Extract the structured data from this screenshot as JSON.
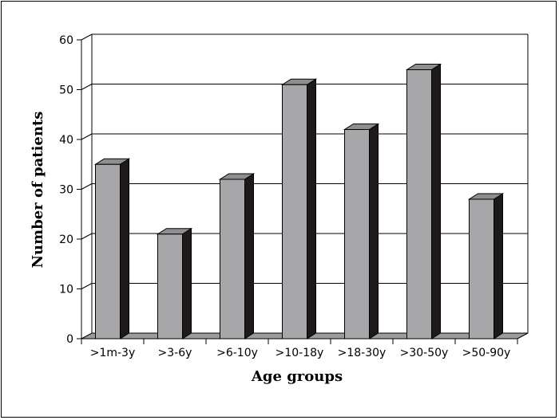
{
  "chart_data": {
    "type": "bar",
    "title": "",
    "xlabel": "Age groups",
    "ylabel": "Number of patients",
    "categories": [
      ">1m-3y",
      ">3-6y",
      ">6-10y",
      ">10-18y",
      ">18-30y",
      ">30-50y",
      ">50-90y"
    ],
    "values": [
      35,
      21,
      32,
      51,
      42,
      54,
      28
    ],
    "ylim": [
      0,
      60
    ],
    "yticks": [
      "0",
      "10",
      "20",
      "30",
      "40",
      "50",
      "60"
    ],
    "grid": true,
    "legend": "none",
    "colors": {
      "bar_front": "#a7a7a9",
      "bar_top": "#8e8e90",
      "bar_side": "#1e1a1b",
      "floor": "#9c9c9e",
      "grid": "#000000",
      "background": "#ffffff"
    }
  }
}
